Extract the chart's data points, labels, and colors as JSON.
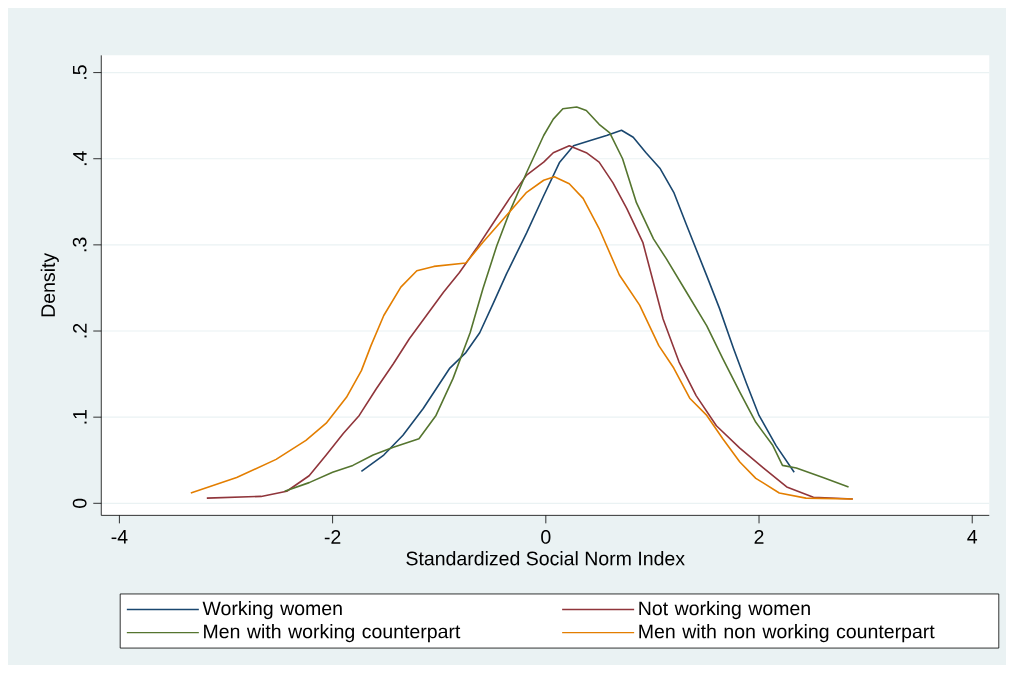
{
  "chart_data": {
    "type": "line",
    "xlabel": "Standardized Social Norm Index",
    "ylabel": "Density",
    "xlim": [
      -4.17,
      4.16
    ],
    "ylim": [
      -0.014,
      0.52
    ],
    "xticks": [
      -4,
      -2,
      0,
      2,
      4
    ],
    "yticks": [
      0,
      {
        "value": 0.1,
        "label": ".1"
      },
      {
        "value": 0.2,
        "label": ".2"
      },
      {
        "value": 0.3,
        "label": ".3"
      },
      {
        "value": 0.4,
        "label": ".4"
      },
      {
        "value": 0.5,
        "label": ".5"
      }
    ],
    "grid": "y",
    "legend": "bottom",
    "series": [
      {
        "name": "Working women",
        "color": "#1a476f",
        "x": [
          -1.73,
          -1.52,
          -1.34,
          -1.15,
          -0.9,
          -0.75,
          -0.62,
          -0.49,
          -0.37,
          -0.18,
          -0.02,
          0.13,
          0.26,
          0.41,
          0.57,
          0.71,
          0.82,
          0.94,
          1.07,
          1.2,
          1.32,
          1.51,
          1.63,
          1.76,
          1.88,
          2.0,
          2.16,
          2.33
        ],
        "values": [
          0.037,
          0.056,
          0.079,
          0.11,
          0.157,
          0.175,
          0.198,
          0.233,
          0.266,
          0.314,
          0.357,
          0.396,
          0.415,
          0.421,
          0.427,
          0.433,
          0.425,
          0.407,
          0.389,
          0.361,
          0.323,
          0.264,
          0.226,
          0.18,
          0.14,
          0.102,
          0.067,
          0.036
        ]
      },
      {
        "name": "Not working women",
        "color": "#90353b",
        "x": [
          -3.18,
          -2.67,
          -2.43,
          -2.22,
          -2.06,
          -1.9,
          -1.75,
          -1.59,
          -1.43,
          -1.28,
          -1.12,
          -0.96,
          -0.81,
          -0.65,
          -0.49,
          -0.34,
          -0.18,
          -0.02,
          0.07,
          0.22,
          0.38,
          0.5,
          0.63,
          0.76,
          0.91,
          1.1,
          1.25,
          1.41,
          1.6,
          1.82,
          2.04,
          2.26,
          2.51,
          2.88
        ],
        "values": [
          0.006,
          0.008,
          0.014,
          0.032,
          0.056,
          0.081,
          0.102,
          0.133,
          0.162,
          0.191,
          0.218,
          0.245,
          0.268,
          0.296,
          0.326,
          0.354,
          0.381,
          0.396,
          0.407,
          0.415,
          0.407,
          0.396,
          0.372,
          0.342,
          0.303,
          0.214,
          0.164,
          0.125,
          0.09,
          0.064,
          0.041,
          0.019,
          0.007,
          0.005
        ]
      },
      {
        "name": "Men with working counterpart",
        "color": "#55752f",
        "x": [
          -2.45,
          -2.22,
          -2.0,
          -1.81,
          -1.62,
          -1.43,
          -1.19,
          -1.03,
          -0.87,
          -0.71,
          -0.59,
          -0.46,
          -0.34,
          -0.18,
          -0.02,
          0.07,
          0.16,
          0.29,
          0.38,
          0.5,
          0.6,
          0.72,
          0.85,
          1.01,
          1.13,
          1.32,
          1.51,
          1.66,
          1.82,
          1.97,
          2.13,
          2.22,
          2.35,
          2.6,
          2.84
        ],
        "values": [
          0.014,
          0.024,
          0.036,
          0.044,
          0.056,
          0.065,
          0.075,
          0.102,
          0.145,
          0.198,
          0.249,
          0.299,
          0.338,
          0.384,
          0.427,
          0.446,
          0.458,
          0.46,
          0.456,
          0.44,
          0.43,
          0.4,
          0.349,
          0.307,
          0.284,
          0.245,
          0.206,
          0.168,
          0.129,
          0.094,
          0.067,
          0.044,
          0.041,
          0.03,
          0.019
        ]
      },
      {
        "name": "Men with non working counterpart",
        "color": "#e37e00",
        "x": [
          -3.33,
          -2.9,
          -2.53,
          -2.25,
          -2.06,
          -1.87,
          -1.73,
          -1.64,
          -1.52,
          -1.36,
          -1.21,
          -1.05,
          -0.75,
          -0.59,
          -0.37,
          -0.18,
          -0.02,
          0.08,
          0.22,
          0.35,
          0.5,
          0.69,
          0.88,
          1.06,
          1.2,
          1.35,
          1.51,
          1.66,
          1.82,
          1.97,
          2.19,
          2.44,
          2.88
        ],
        "values": [
          0.012,
          0.03,
          0.051,
          0.073,
          0.093,
          0.123,
          0.154,
          0.183,
          0.218,
          0.251,
          0.27,
          0.275,
          0.279,
          0.303,
          0.334,
          0.361,
          0.375,
          0.379,
          0.371,
          0.354,
          0.319,
          0.265,
          0.23,
          0.183,
          0.157,
          0.122,
          0.102,
          0.075,
          0.048,
          0.029,
          0.012,
          0.006,
          0.005
        ]
      }
    ]
  }
}
